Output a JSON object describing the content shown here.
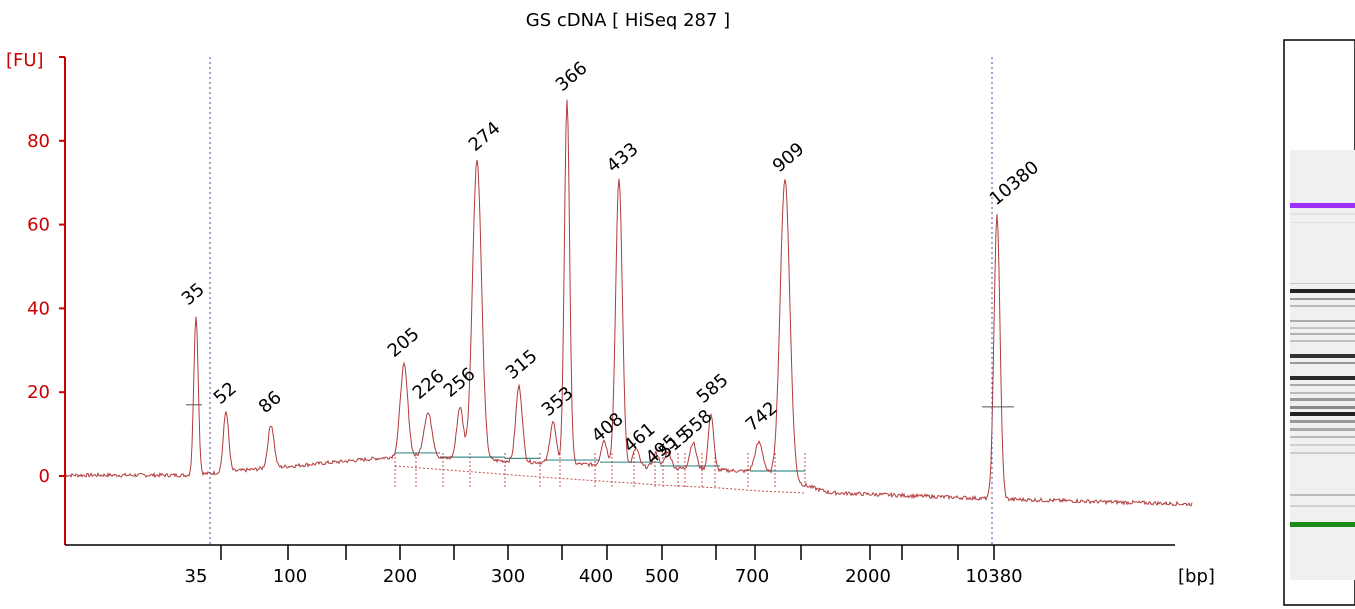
{
  "chart_data": {
    "type": "line",
    "title": "GS cDNA  [ HiSeq 287 ]",
    "ylabel": "[FU]",
    "xlabel": "[bp]",
    "ylim": [
      -16,
      103
    ],
    "yticks": [
      0,
      20,
      40,
      60,
      80
    ],
    "xticks": [
      "35",
      "100",
      "200",
      "300",
      "400",
      "500",
      "700",
      "2000",
      "10380"
    ],
    "marker_lines": [
      "35",
      "10380"
    ],
    "peaks": [
      {
        "label": "35",
        "color": "#2e8b2e",
        "y": 38.5
      },
      {
        "label": "52",
        "y": 15.5
      },
      {
        "label": "86",
        "y": 12.3
      },
      {
        "label": "205",
        "y": 26.5
      },
      {
        "label": "226",
        "y": 15
      },
      {
        "label": "256",
        "y": 16.5
      },
      {
        "label": "274",
        "y": 75.5
      },
      {
        "label": "315",
        "y": 21.5
      },
      {
        "label": "353",
        "y": 13
      },
      {
        "label": "366",
        "y": 90
      },
      {
        "label": "408",
        "y": 8.5
      },
      {
        "label": "433",
        "y": 71
      },
      {
        "label": "461",
        "y": 6.5
      },
      {
        "label": "495",
        "y": 5.5
      },
      {
        "label": "515",
        "y": 5.8
      },
      {
        "label": "558",
        "y": 8
      },
      {
        "label": "585",
        "y": 15
      },
      {
        "label": "742",
        "y": 8
      },
      {
        "label": "909",
        "y": 71
      },
      {
        "label": "10380",
        "color": "#9b30ff",
        "y": 62.5
      }
    ],
    "gel": {
      "marker_top_color": "#9b30ff",
      "marker_bottom_color": "#1a8c1a"
    }
  }
}
